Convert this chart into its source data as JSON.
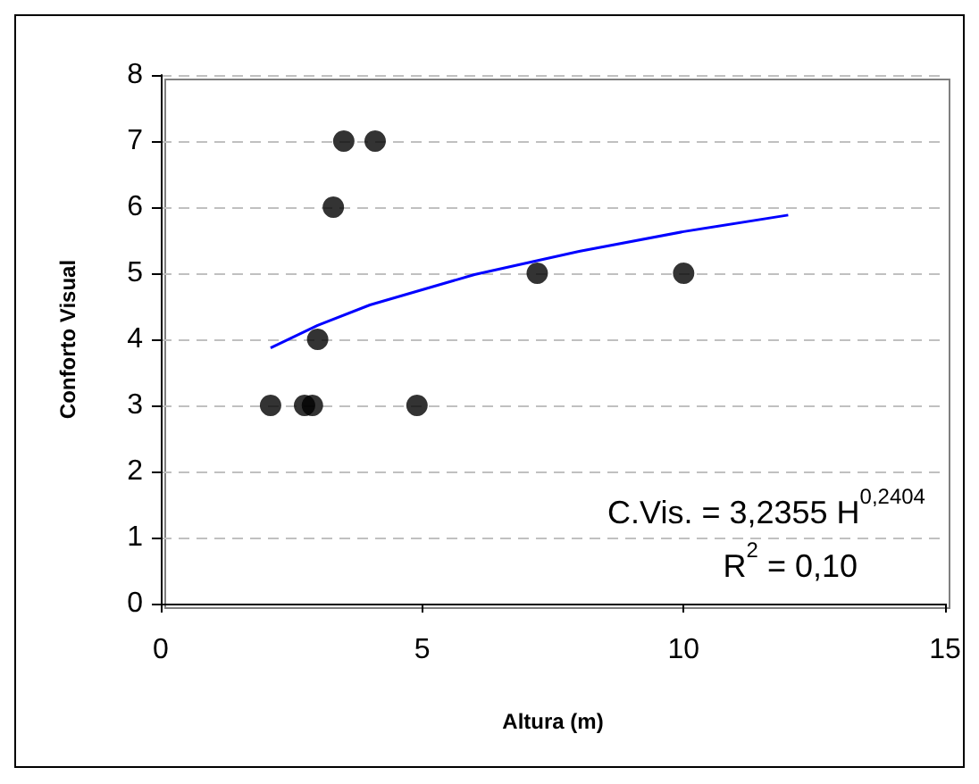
{
  "chart_data": {
    "type": "scatter",
    "xlabel": "Altura (m)",
    "ylabel": "Conforto Visual",
    "xlim": [
      0,
      15
    ],
    "xticks": [
      0,
      5,
      10,
      15
    ],
    "ylim": [
      0,
      8
    ],
    "yticks": [
      0,
      1,
      2,
      3,
      4,
      5,
      6,
      7,
      8
    ],
    "grid": "y",
    "marker": "circle",
    "series": [
      {
        "color": "#000000",
        "x": [
          2.1,
          2.75,
          2.9,
          3.0,
          3.3,
          3.5,
          4.1,
          4.9,
          7.2,
          10.0
        ],
        "values": [
          3,
          3,
          3,
          4,
          6,
          7,
          7,
          3,
          5,
          5
        ]
      },
      {
        "type": "line",
        "color": "#0000ff",
        "marker": "none",
        "x": [
          2.1,
          3,
          4,
          6,
          8,
          10,
          12
        ],
        "values": [
          3.87,
          4.21,
          4.52,
          4.98,
          5.33,
          5.63,
          5.88
        ]
      }
    ],
    "annotations": [
      "C.Vis. = 3,2355 H$^{0,2404}$",
      "R$^{2}$ = 0,10"
    ]
  }
}
